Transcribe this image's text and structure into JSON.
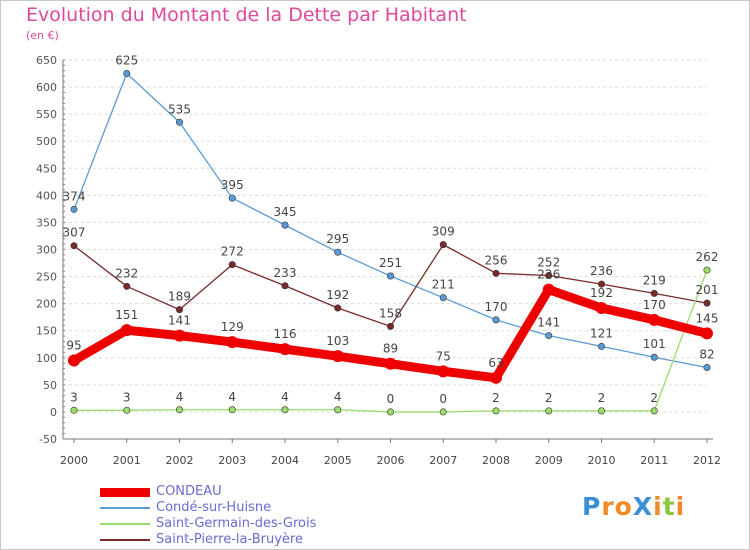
{
  "title": "Evolution du Montant de la Dette par Habitant",
  "subtitle": "(en €)",
  "logo": {
    "text": "ProXiti",
    "letters": [
      {
        "ch": "P",
        "color": "#3b8fd4"
      },
      {
        "ch": "r",
        "color": "#f08a24"
      },
      {
        "ch": "o",
        "color": "#f08a24"
      },
      {
        "ch": "X",
        "color": "#3b8fd4"
      },
      {
        "ch": "i",
        "color": "#f08a24"
      },
      {
        "ch": "t",
        "color": "#8cc63f"
      },
      {
        "ch": "i",
        "color": "#f08a24"
      }
    ]
  },
  "chart_data": {
    "type": "line",
    "categories": [
      "2000",
      "2001",
      "2002",
      "2003",
      "2004",
      "2005",
      "2006",
      "2007",
      "2008",
      "2009",
      "2010",
      "2011",
      "2012"
    ],
    "ylim": [
      -50,
      650
    ],
    "yticks": [
      -50,
      0,
      50,
      100,
      150,
      200,
      250,
      300,
      350,
      400,
      450,
      500,
      550,
      600,
      650
    ],
    "grid": "horizontal dashed",
    "legend_position": "bottom-left",
    "series": [
      {
        "name": "CONDEAU",
        "color": "#ee0000",
        "values": [
          95,
          151,
          141,
          129,
          116,
          103,
          89,
          75,
          63,
          226,
          192,
          170,
          145
        ]
      },
      {
        "name": "Condé-sur-Huisne",
        "color": "#5a9bd5",
        "values": [
          374,
          625,
          535,
          395,
          345,
          295,
          251,
          211,
          170,
          141,
          121,
          101,
          82
        ]
      },
      {
        "name": "Saint-Germain-des-Grois",
        "color": "#9cdc6a",
        "values": [
          3,
          3,
          4,
          4,
          4,
          4,
          0,
          0,
          2,
          2,
          2,
          2,
          262
        ]
      },
      {
        "name": "Saint-Pierre-la-Bruyère",
        "color": "#7a2a2a",
        "values": [
          307,
          232,
          189,
          272,
          233,
          192,
          158,
          309,
          256,
          252,
          236,
          219,
          201
        ]
      }
    ]
  }
}
